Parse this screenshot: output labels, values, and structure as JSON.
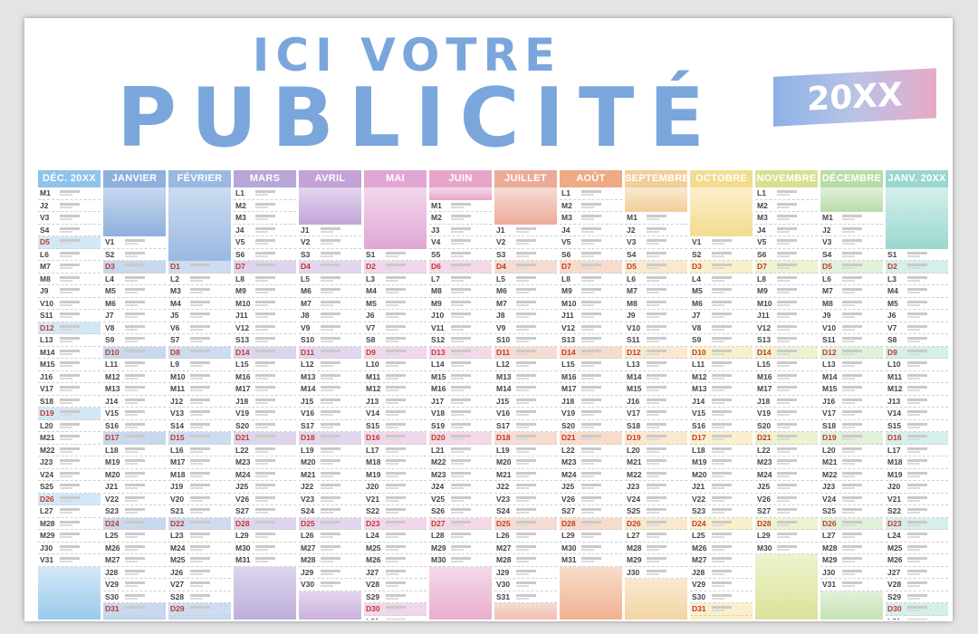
{
  "ad": {
    "line1": "ICI VOTRE",
    "line2": "PUBLICITÉ"
  },
  "badge": {
    "year": "20XX"
  },
  "months": [
    {
      "name": "DÉC. 20XX",
      "color": "#8ec3ea",
      "light": "#d3e8f7",
      "start": 9,
      "top_blank": 0,
      "days": 31
    },
    {
      "name": "JANVIER",
      "color": "#8fb0dc",
      "light": "#c7d8ef",
      "start": 4,
      "top_blank": 4,
      "days": 31
    },
    {
      "name": "FÉVRIER",
      "color": "#99b9e2",
      "light": "#cddcf0",
      "start": 6,
      "top_blank": 6,
      "days": 29
    },
    {
      "name": "MARS",
      "color": "#b7a6d6",
      "light": "#ddd5ee",
      "start": 0,
      "top_blank": 0,
      "days": 31
    },
    {
      "name": "AVRIL",
      "color": "#c2a3d6",
      "light": "#e3d6ef",
      "start": 3,
      "top_blank": 3,
      "days": 30
    },
    {
      "name": "MAI",
      "color": "#e1a6d4",
      "light": "#f2d7ec",
      "start": 5,
      "top_blank": 5,
      "days": 31
    },
    {
      "name": "JUIN",
      "color": "#e7a6c9",
      "light": "#f5d9e9",
      "start": 1,
      "top_blank": 1,
      "days": 30
    },
    {
      "name": "JUILLET",
      "color": "#ecab99",
      "light": "#f7dcd2",
      "start": 3,
      "top_blank": 3,
      "days": 31
    },
    {
      "name": "AOÛT",
      "color": "#eeaa85",
      "light": "#f8dccb",
      "start": 0,
      "top_blank": 0,
      "days": 31
    },
    {
      "name": "SEPTEMBRE",
      "color": "#f1cf99",
      "light": "#fae9cf",
      "start": 2,
      "top_blank": 2,
      "days": 30
    },
    {
      "name": "OCTOBRE",
      "color": "#f2dc8f",
      "light": "#fbf0cc",
      "start": 4,
      "top_blank": 4,
      "days": 31
    },
    {
      "name": "NOVEMBRE",
      "color": "#d8e090",
      "light": "#eef2cf",
      "start": 0,
      "top_blank": 0,
      "days": 30
    },
    {
      "name": "DÉCEMBRE",
      "color": "#b8dca8",
      "light": "#e1f1da",
      "start": 2,
      "top_blank": 2,
      "days": 31
    },
    {
      "name": "JANV. 20XX",
      "color": "#9ad7cf",
      "light": "#d5efeb",
      "start": 5,
      "top_blank": 5,
      "days": 31
    }
  ]
}
